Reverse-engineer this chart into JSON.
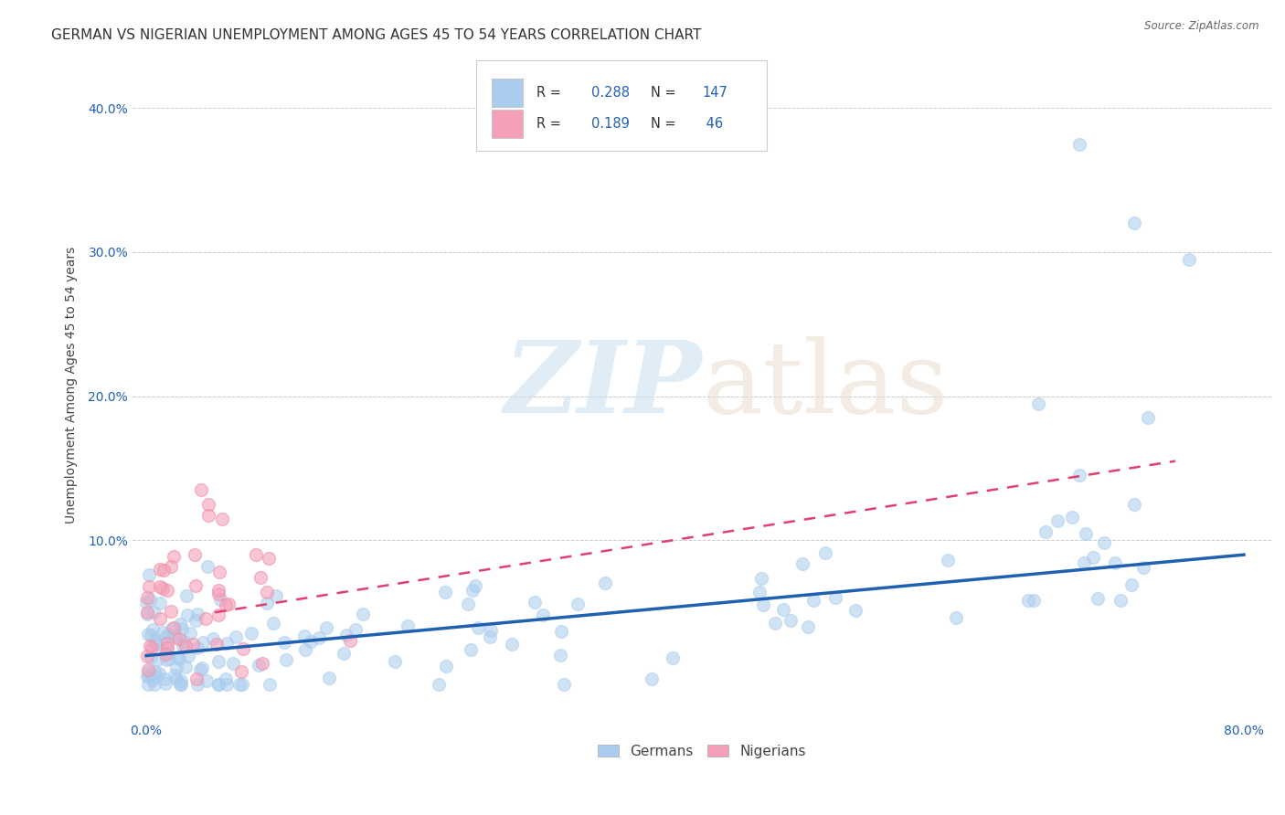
{
  "title": "GERMAN VS NIGERIAN UNEMPLOYMENT AMONG AGES 45 TO 54 YEARS CORRELATION CHART",
  "source": "Source: ZipAtlas.com",
  "ylabel": "Unemployment Among Ages 45 to 54 years",
  "xlim": [
    -0.01,
    0.82
  ],
  "ylim": [
    -0.025,
    0.44
  ],
  "xticks": [
    0.0,
    0.1,
    0.2,
    0.3,
    0.4,
    0.5,
    0.6,
    0.7,
    0.8
  ],
  "yticks": [
    0.1,
    0.2,
    0.3,
    0.4
  ],
  "ytick_labels": [
    "10.0%",
    "20.0%",
    "30.0%",
    "40.0%"
  ],
  "xtick_labels": [
    "0.0%",
    "",
    "",
    "",
    "",
    "",
    "",
    "",
    "80.0%"
  ],
  "german_R": 0.288,
  "german_N": 147,
  "nigerian_R": 0.189,
  "nigerian_N": 46,
  "german_color": "#aaccee",
  "nigerian_color": "#f4a0b8",
  "german_edge_color": "#aaccee",
  "nigerian_edge_color": "#f090a8",
  "german_line_color": "#2060b0",
  "nigerian_line_color": "#e04070",
  "background_color": "#ffffff",
  "legend_label_german": "Germans",
  "legend_label_nigerian": "Nigerians",
  "title_fontsize": 11,
  "axis_label_fontsize": 10,
  "tick_fontsize": 10,
  "german_trend_x0": 0.0,
  "german_trend_y0": 0.02,
  "german_trend_x1": 0.8,
  "german_trend_y1": 0.09,
  "nigerian_trend_x0": 0.05,
  "nigerian_trend_y0": 0.05,
  "nigerian_trend_x1": 0.75,
  "nigerian_trend_y1": 0.155
}
